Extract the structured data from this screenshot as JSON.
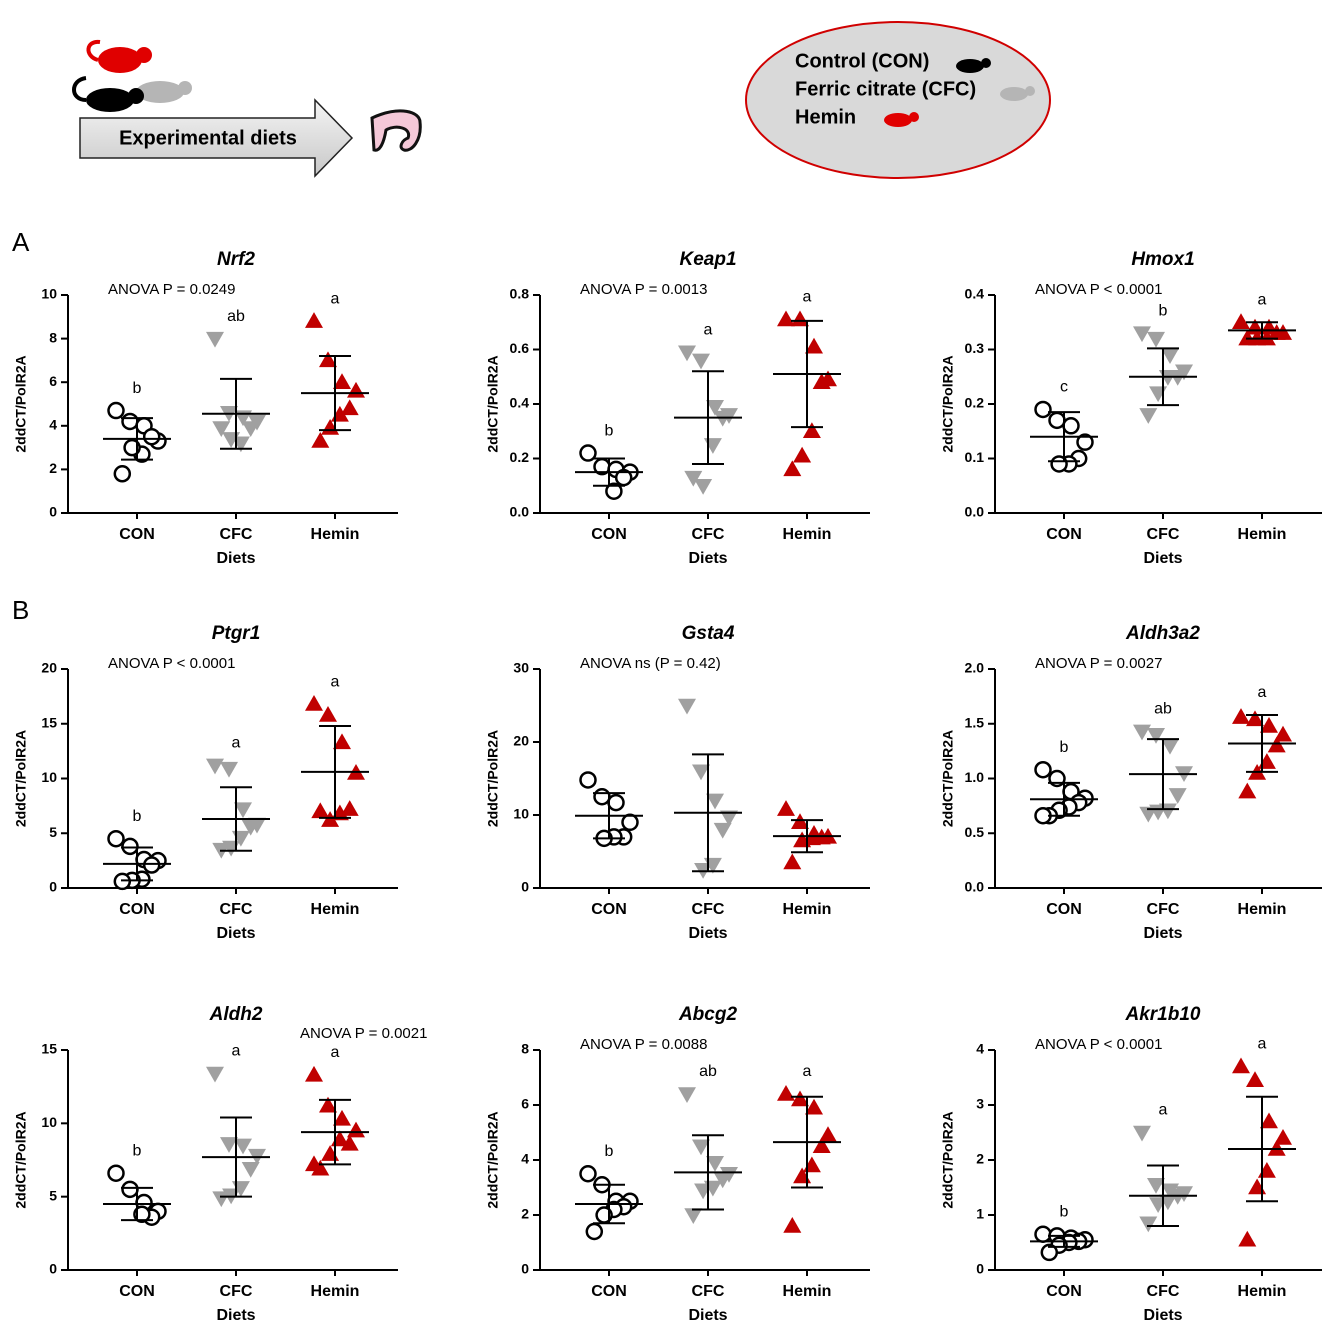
{
  "header": {
    "arrow_label": "Experimental diets",
    "legend": [
      "Control (CON)",
      "Ferric citrate (CFC)",
      "Hemin"
    ]
  },
  "panels": [
    "A",
    "B"
  ],
  "chart_data": [
    {
      "type": "scatter",
      "title": "Nrf2",
      "annotation": "ANOVA P = 0.0249",
      "xlabel": "Diets",
      "ylabel": "2ddCT/PolR2A",
      "ylim": [
        0,
        10
      ],
      "yticks": [
        0,
        2,
        4,
        6,
        8,
        10
      ],
      "categories": [
        "CON",
        "CFC",
        "Hemin"
      ],
      "groups": [
        {
          "color": "#000000",
          "marker": "circle",
          "letter": "b",
          "values": [
            4.7,
            4.2,
            4.0,
            3.3,
            3.5,
            2.7,
            3.0,
            1.8
          ],
          "mean": 3.4,
          "sd": 0.95
        },
        {
          "color": "#a0a0a0",
          "marker": "triangle-down",
          "letter": "ab",
          "values": [
            8.0,
            4.6,
            4.4,
            4.2,
            3.9,
            3.2,
            3.4,
            3.9
          ],
          "mean": 4.55,
          "sd": 1.6
        },
        {
          "color": "#c00000",
          "marker": "triangle-up",
          "letter": "a",
          "values": [
            8.8,
            7.0,
            6.0,
            5.6,
            4.8,
            4.5,
            3.9,
            3.3
          ],
          "mean": 5.5,
          "sd": 1.7
        }
      ]
    },
    {
      "type": "scatter",
      "title": "Keap1",
      "annotation": "ANOVA P = 0.0013",
      "xlabel": "Diets",
      "ylabel": "2ddCT/PolR2A",
      "ylim": [
        0,
        0.8
      ],
      "yticks": [
        {
          "value": 0,
          "label": "0.0"
        },
        0.2,
        0.4,
        0.6,
        0.8
      ],
      "categories": [
        "CON",
        "CFC",
        "Hemin"
      ],
      "groups": [
        {
          "color": "#000000",
          "marker": "circle",
          "letter": "b",
          "values": [
            0.22,
            0.17,
            0.16,
            0.15,
            0.13,
            0.08
          ],
          "mean": 0.15,
          "sd": 0.05
        },
        {
          "color": "#a0a0a0",
          "marker": "triangle-down",
          "letter": "a",
          "values": [
            0.59,
            0.56,
            0.39,
            0.36,
            0.35,
            0.25,
            0.1,
            0.13
          ],
          "mean": 0.35,
          "sd": 0.17
        },
        {
          "color": "#c00000",
          "marker": "triangle-up",
          "letter": "a",
          "values": [
            0.71,
            0.71,
            0.61,
            0.49,
            0.48,
            0.3,
            0.21,
            0.16
          ],
          "mean": 0.51,
          "sd": 0.195
        }
      ]
    },
    {
      "type": "scatter",
      "title": "Hmox1",
      "annotation": "ANOVA P < 0.0001",
      "xlabel": "Diets",
      "ylabel": "2ddCT/PolR2A",
      "ylim": [
        0,
        0.4
      ],
      "yticks": [
        {
          "value": 0,
          "label": "0.0"
        },
        0.1,
        0.2,
        0.3,
        0.4
      ],
      "categories": [
        "CON",
        "CFC",
        "Hemin"
      ],
      "groups": [
        {
          "color": "#000000",
          "marker": "circle",
          "letter": "c",
          "values": [
            0.19,
            0.17,
            0.16,
            0.13,
            0.1,
            0.09,
            0.09
          ],
          "mean": 0.14,
          "sd": 0.045
        },
        {
          "color": "#a0a0a0",
          "marker": "triangle-down",
          "letter": "b",
          "values": [
            0.33,
            0.32,
            0.29,
            0.26,
            0.25,
            0.25,
            0.22,
            0.18
          ],
          "mean": 0.25,
          "sd": 0.052
        },
        {
          "color": "#c00000",
          "marker": "triangle-up",
          "letter": "a",
          "values": [
            0.35,
            0.34,
            0.34,
            0.33,
            0.33,
            0.32,
            0.32,
            0.32
          ],
          "mean": 0.335,
          "sd": 0.015
        }
      ]
    },
    {
      "type": "scatter",
      "title": "Ptgr1",
      "annotation": "ANOVA P < 0.0001",
      "xlabel": "Diets",
      "ylabel": "2ddCT/PolR2A",
      "ylim": [
        0,
        20
      ],
      "yticks": [
        0,
        5,
        10,
        15,
        20
      ],
      "categories": [
        "CON",
        "CFC",
        "Hemin"
      ],
      "groups": [
        {
          "color": "#000000",
          "marker": "circle",
          "letter": "b",
          "values": [
            4.5,
            3.8,
            2.6,
            2.5,
            2.1,
            0.8,
            0.7,
            0.6
          ],
          "mean": 2.2,
          "sd": 1.5
        },
        {
          "color": "#a0a0a0",
          "marker": "triangle-down",
          "letter": "a",
          "values": [
            11.2,
            10.9,
            7.2,
            5.8,
            5.6,
            4.6,
            3.7,
            3.5
          ],
          "mean": 6.3,
          "sd": 2.9
        },
        {
          "color": "#c00000",
          "marker": "triangle-up",
          "letter": "a",
          "values": [
            16.8,
            15.8,
            13.3,
            10.5,
            7.2,
            6.8,
            6.2,
            7.0
          ],
          "mean": 10.6,
          "sd": 4.2
        }
      ]
    },
    {
      "type": "scatter",
      "title": "Gsta4",
      "annotation": "ANOVA ns (P = 0.42)",
      "xlabel": "Diets",
      "ylabel": "2ddCT/PolR2A",
      "ylim": [
        0,
        30
      ],
      "yticks": [
        0,
        10,
        20,
        30
      ],
      "categories": [
        "CON",
        "CFC",
        "Hemin"
      ],
      "groups": [
        {
          "color": "#000000",
          "marker": "circle",
          "values": [
            14.8,
            12.5,
            11.7,
            9.0,
            7.0,
            7.0,
            6.8
          ],
          "mean": 9.9,
          "sd": 3.1
        },
        {
          "color": "#a0a0a0",
          "marker": "triangle-down",
          "values": [
            25.0,
            16.0,
            12.0,
            9.7,
            8.0,
            3.2,
            2.5
          ],
          "mean": 10.3,
          "sd": 8.0
        },
        {
          "color": "#c00000",
          "marker": "triangle-up",
          "values": [
            10.8,
            9.0,
            7.4,
            7.0,
            6.9,
            6.8,
            6.5,
            3.5
          ],
          "mean": 7.1,
          "sd": 2.2
        }
      ]
    },
    {
      "type": "scatter",
      "title": "Aldh3a2",
      "annotation": "ANOVA P =  0.0027",
      "xlabel": "Diets",
      "ylabel": "2ddCT/PolR2A",
      "ylim": [
        0,
        2
      ],
      "yticks": [
        {
          "value": 0,
          "label": "0.0"
        },
        0.5,
        {
          "value": 1,
          "label": "1.0"
        },
        1.5,
        {
          "value": 2,
          "label": "2.0"
        }
      ],
      "categories": [
        "CON",
        "CFC",
        "Hemin"
      ],
      "groups": [
        {
          "color": "#000000",
          "marker": "circle",
          "letter": "b",
          "values": [
            1.08,
            1.0,
            0.88,
            0.82,
            0.78,
            0.74,
            0.71,
            0.66,
            0.66
          ],
          "mean": 0.81,
          "sd": 0.15
        },
        {
          "color": "#a0a0a0",
          "marker": "triangle-down",
          "letter": "ab",
          "values": [
            1.43,
            1.4,
            1.3,
            1.05,
            0.85,
            0.71,
            0.7,
            0.68
          ],
          "mean": 1.04,
          "sd": 0.32
        },
        {
          "color": "#c00000",
          "marker": "triangle-up",
          "letter": "a",
          "values": [
            1.56,
            1.54,
            1.48,
            1.4,
            1.3,
            1.15,
            1.05,
            0.88
          ],
          "mean": 1.32,
          "sd": 0.26
        }
      ]
    },
    {
      "type": "scatter",
      "title": "Aldh2",
      "annotation": "ANOVA P = 0.0021",
      "xlabel": "Diets",
      "ylabel": "2ddCT/PolR2A",
      "ylim": [
        0,
        15
      ],
      "yticks": [
        0,
        5,
        10,
        15
      ],
      "categories": [
        "CON",
        "CFC",
        "Hemin"
      ],
      "groups": [
        {
          "color": "#000000",
          "marker": "circle",
          "letter": "b",
          "values": [
            6.6,
            5.5,
            4.6,
            4.0,
            3.6,
            3.8
          ],
          "mean": 4.5,
          "sd": 1.1
        },
        {
          "color": "#a0a0a0",
          "marker": "triangle-down",
          "letter": "a",
          "values": [
            13.4,
            8.6,
            8.5,
            7.8,
            6.9,
            5.6,
            5.1,
            4.9
          ],
          "mean": 7.7,
          "sd": 2.7
        },
        {
          "color": "#c00000",
          "marker": "triangle-up",
          "letter": "a",
          "values": [
            13.3,
            11.2,
            10.3,
            9.5,
            8.6,
            8.9,
            7.9,
            6.9,
            7.2
          ],
          "mean": 9.4,
          "sd": 2.2
        }
      ]
    },
    {
      "type": "scatter",
      "title": "Abcg2",
      "annotation": "ANOVA P = 0.0088",
      "xlabel": "Diets",
      "ylabel": "2ddCT/PolR2A",
      "ylim": [
        0,
        8
      ],
      "yticks": [
        0,
        2,
        4,
        6,
        8
      ],
      "categories": [
        "CON",
        "CFC",
        "Hemin"
      ],
      "groups": [
        {
          "color": "#000000",
          "marker": "circle",
          "letter": "b",
          "values": [
            3.5,
            3.1,
            2.5,
            2.5,
            2.3,
            2.2,
            2.0,
            1.4
          ],
          "mean": 2.4,
          "sd": 0.7
        },
        {
          "color": "#a0a0a0",
          "marker": "triangle-down",
          "letter": "ab",
          "values": [
            6.4,
            4.5,
            3.9,
            3.5,
            3.3,
            3.0,
            2.9,
            2.0
          ],
          "mean": 3.55,
          "sd": 1.35
        },
        {
          "color": "#c00000",
          "marker": "triangle-up",
          "letter": "a",
          "values": [
            6.4,
            6.2,
            5.9,
            4.9,
            4.5,
            3.8,
            3.4,
            1.6
          ],
          "mean": 4.65,
          "sd": 1.65
        }
      ]
    },
    {
      "type": "scatter",
      "title": "Akr1b10",
      "annotation": "ANOVA P < 0.0001",
      "xlabel": "Diets",
      "ylabel": "2ddCT/PolR2A",
      "ylim": [
        0,
        4
      ],
      "yticks": [
        0,
        1,
        2,
        3,
        4
      ],
      "categories": [
        "CON",
        "CFC",
        "Hemin"
      ],
      "groups": [
        {
          "color": "#000000",
          "marker": "circle",
          "letter": "b",
          "values": [
            0.65,
            0.62,
            0.58,
            0.55,
            0.52,
            0.5,
            0.45,
            0.32
          ],
          "mean": 0.52,
          "sd": 0.1
        },
        {
          "color": "#a0a0a0",
          "marker": "triangle-down",
          "letter": "a",
          "values": [
            2.5,
            1.55,
            1.45,
            1.4,
            1.35,
            1.25,
            1.2,
            0.85
          ],
          "mean": 1.35,
          "sd": 0.55
        },
        {
          "color": "#c00000",
          "marker": "triangle-up",
          "letter": "a",
          "values": [
            3.7,
            3.45,
            2.7,
            2.4,
            2.2,
            1.8,
            1.5,
            0.55
          ],
          "mean": 2.2,
          "sd": 0.95
        }
      ]
    }
  ]
}
